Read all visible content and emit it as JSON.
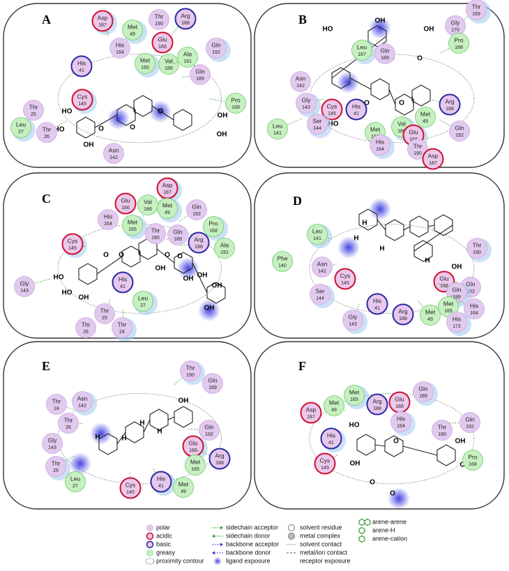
{
  "panels": [
    {
      "label": "A",
      "residues": [
        {
          "name": "Asp",
          "number": 187,
          "kind": "acidic"
        },
        {
          "name": "Thr",
          "number": 190,
          "kind": "polar"
        },
        {
          "name": "Arg",
          "number": 188,
          "kind": "basic"
        },
        {
          "name": "Met",
          "number": 49,
          "kind": "greasy"
        },
        {
          "name": "Glu",
          "number": 166,
          "kind": "acidic"
        },
        {
          "name": "His",
          "number": 164,
          "kind": "polar"
        },
        {
          "name": "Met",
          "number": 165,
          "kind": "greasy"
        },
        {
          "name": "Val",
          "number": 186,
          "kind": "greasy"
        },
        {
          "name": "Ala",
          "number": 191,
          "kind": "greasy"
        },
        {
          "name": "Gln",
          "number": 192,
          "kind": "polar"
        },
        {
          "name": "Gln",
          "number": 189,
          "kind": "polar"
        },
        {
          "name": "His",
          "number": 41,
          "kind": "basic"
        },
        {
          "name": "Cys",
          "number": 145,
          "kind": "acidic"
        },
        {
          "name": "Thr",
          "number": 25,
          "kind": "polar"
        },
        {
          "name": "Thr",
          "number": 26,
          "kind": "polar"
        },
        {
          "name": "Leu",
          "number": 27,
          "kind": "greasy"
        },
        {
          "name": "Pro",
          "number": 168,
          "kind": "greasy"
        },
        {
          "name": "Asn",
          "number": 142,
          "kind": "polar"
        }
      ],
      "atoms": [
        "HO",
        "HO",
        "OH",
        "O",
        "O",
        "O",
        "OH",
        "OH"
      ]
    },
    {
      "label": "B",
      "residues": [
        {
          "name": "Thr",
          "number": 169,
          "kind": "polar"
        },
        {
          "name": "Gly",
          "number": 170,
          "kind": "polar"
        },
        {
          "name": "Pro",
          "number": 168,
          "kind": "greasy"
        },
        {
          "name": "Leu",
          "number": 167,
          "kind": "greasy"
        },
        {
          "name": "Gln",
          "number": 189,
          "kind": "polar"
        },
        {
          "name": "Asn",
          "number": 142,
          "kind": "polar"
        },
        {
          "name": "Gly",
          "number": 143,
          "kind": "polar"
        },
        {
          "name": "Cys",
          "number": 145,
          "kind": "acidic"
        },
        {
          "name": "His",
          "number": 41,
          "kind": "basic"
        },
        {
          "name": "Ser",
          "number": 144,
          "kind": "polar"
        },
        {
          "name": "Leu",
          "number": 141,
          "kind": "greasy"
        },
        {
          "name": "Met",
          "number": 165,
          "kind": "greasy"
        },
        {
          "name": "Val",
          "number": 186,
          "kind": "greasy"
        },
        {
          "name": "Met",
          "number": 49,
          "kind": "greasy"
        },
        {
          "name": "Arg",
          "number": 188,
          "kind": "basic"
        },
        {
          "name": "Glu",
          "number": 166,
          "kind": "acidic"
        },
        {
          "name": "Gln",
          "number": 192,
          "kind": "polar"
        },
        {
          "name": "Thr",
          "number": 190,
          "kind": "polar"
        },
        {
          "name": "His",
          "number": 164,
          "kind": "polar"
        },
        {
          "name": "Asp",
          "number": 187,
          "kind": "acidic"
        }
      ],
      "atoms": [
        "HO",
        "OH",
        "OH",
        "O",
        "O",
        "HO",
        "HO",
        "O",
        "O"
      ]
    },
    {
      "label": "C",
      "residues": [
        {
          "name": "Asp",
          "number": 187,
          "kind": "acidic"
        },
        {
          "name": "Glu",
          "number": 166,
          "kind": "acidic"
        },
        {
          "name": "Val",
          "number": 186,
          "kind": "greasy"
        },
        {
          "name": "Met",
          "number": 49,
          "kind": "greasy"
        },
        {
          "name": "Gln",
          "number": 192,
          "kind": "polar"
        },
        {
          "name": "His",
          "number": 164,
          "kind": "polar"
        },
        {
          "name": "Met",
          "number": 165,
          "kind": "greasy"
        },
        {
          "name": "Thr",
          "number": 190,
          "kind": "polar"
        },
        {
          "name": "Gln",
          "number": 189,
          "kind": "polar"
        },
        {
          "name": "Pro",
          "number": 168,
          "kind": "greasy"
        },
        {
          "name": "Arg",
          "number": 188,
          "kind": "basic"
        },
        {
          "name": "Ala",
          "number": 191,
          "kind": "greasy"
        },
        {
          "name": "Cys",
          "number": 145,
          "kind": "acidic"
        },
        {
          "name": "His",
          "number": 41,
          "kind": "basic"
        },
        {
          "name": "Gly",
          "number": 143,
          "kind": "polar"
        },
        {
          "name": "Leu",
          "number": 27,
          "kind": "greasy"
        },
        {
          "name": "Thr",
          "number": 25,
          "kind": "polar"
        },
        {
          "name": "Thr",
          "number": 26,
          "kind": "polar"
        },
        {
          "name": "Thr",
          "number": 24,
          "kind": "polar"
        }
      ],
      "atoms": [
        "O",
        "O",
        "O",
        "HO",
        "HO",
        "OH",
        "OH",
        "OH",
        "O",
        "OH",
        "OH",
        "OH"
      ]
    },
    {
      "label": "D",
      "residues": [
        {
          "name": "Leu",
          "number": 141,
          "kind": "greasy"
        },
        {
          "name": "Phe",
          "number": 140,
          "kind": "greasy"
        },
        {
          "name": "Asn",
          "number": 142,
          "kind": "polar"
        },
        {
          "name": "Ser",
          "number": 144,
          "kind": "polar"
        },
        {
          "name": "Cys",
          "number": 145,
          "kind": "acidic"
        },
        {
          "name": "His",
          "number": 41,
          "kind": "basic"
        },
        {
          "name": "Gly",
          "number": 143,
          "kind": "polar"
        },
        {
          "name": "Arg",
          "number": 188,
          "kind": "basic"
        },
        {
          "name": "Met",
          "number": 49,
          "kind": "greasy"
        },
        {
          "name": "Thr",
          "number": 190,
          "kind": "polar"
        },
        {
          "name": "Gln",
          "number": 192,
          "kind": "polar"
        },
        {
          "name": "Glu",
          "number": 166,
          "kind": "acidic"
        },
        {
          "name": "Gln",
          "number": 189,
          "kind": "polar"
        },
        {
          "name": "Met",
          "number": 165,
          "kind": "greasy"
        },
        {
          "name": "His",
          "number": 164,
          "kind": "polar"
        },
        {
          "name": "His",
          "number": 172,
          "kind": "polar"
        }
      ],
      "atoms": [
        "H",
        "H",
        "H",
        "H",
        "OH"
      ]
    },
    {
      "label": "E",
      "residues": [
        {
          "name": "Thr",
          "number": 190,
          "kind": "polar"
        },
        {
          "name": "Gln",
          "number": 189,
          "kind": "polar"
        },
        {
          "name": "Thr",
          "number": 24,
          "kind": "polar"
        },
        {
          "name": "Asn",
          "number": 142,
          "kind": "polar"
        },
        {
          "name": "Thr",
          "number": 26,
          "kind": "polar"
        },
        {
          "name": "Gly",
          "number": 143,
          "kind": "polar"
        },
        {
          "name": "Thr",
          "number": 25,
          "kind": "polar"
        },
        {
          "name": "Leu",
          "number": 27,
          "kind": "greasy"
        },
        {
          "name": "Gln",
          "number": 192,
          "kind": "polar"
        },
        {
          "name": "Glu",
          "number": 166,
          "kind": "acidic"
        },
        {
          "name": "Arg",
          "number": 188,
          "kind": "basic"
        },
        {
          "name": "Met",
          "number": 165,
          "kind": "greasy"
        },
        {
          "name": "His",
          "number": 41,
          "kind": "basic"
        },
        {
          "name": "Met",
          "number": 49,
          "kind": "greasy"
        },
        {
          "name": "Cys",
          "number": 145,
          "kind": "acidic"
        }
      ],
      "atoms": [
        "OH",
        "H",
        "H",
        "H",
        "H"
      ]
    },
    {
      "label": "F",
      "residues": [
        {
          "name": "Met",
          "number": 165,
          "kind": "greasy"
        },
        {
          "name": "Arg",
          "number": 188,
          "kind": "basic"
        },
        {
          "name": "Glu",
          "number": 166,
          "kind": "acidic"
        },
        {
          "name": "Gln",
          "number": 189,
          "kind": "polar"
        },
        {
          "name": "Met",
          "number": 49,
          "kind": "greasy"
        },
        {
          "name": "Asp",
          "number": 187,
          "kind": "acidic"
        },
        {
          "name": "His",
          "number": 164,
          "kind": "polar"
        },
        {
          "name": "Thr",
          "number": 190,
          "kind": "polar"
        },
        {
          "name": "Gln",
          "number": 192,
          "kind": "polar"
        },
        {
          "name": "His",
          "number": 41,
          "kind": "basic"
        },
        {
          "name": "Cys",
          "number": 145,
          "kind": "acidic"
        },
        {
          "name": "Pro",
          "number": 168,
          "kind": "greasy"
        }
      ],
      "atoms": [
        "HO",
        "OH",
        "O",
        "O",
        "O",
        "OH",
        "OH"
      ]
    }
  ],
  "legend": {
    "residue_kinds": [
      {
        "kind": "polar",
        "label": "polar"
      },
      {
        "kind": "acidic",
        "label": "acidic"
      },
      {
        "kind": "basic",
        "label": "basic"
      },
      {
        "kind": "greasy",
        "label": "greasy"
      }
    ],
    "proximity": "proximity contour",
    "interactions": [
      "sidechain acceptor",
      "sidechain donor",
      "backbone acceptor",
      "backbone donor"
    ],
    "ligand_exposure": "ligand exposure",
    "contacts": [
      "solvent residue",
      "metal complex",
      "solvent contact",
      "metal/ion contact"
    ],
    "receptor_exposure": "receptor exposure",
    "arene": [
      "arene-arene",
      "arene-H",
      "arene-cation"
    ]
  }
}
